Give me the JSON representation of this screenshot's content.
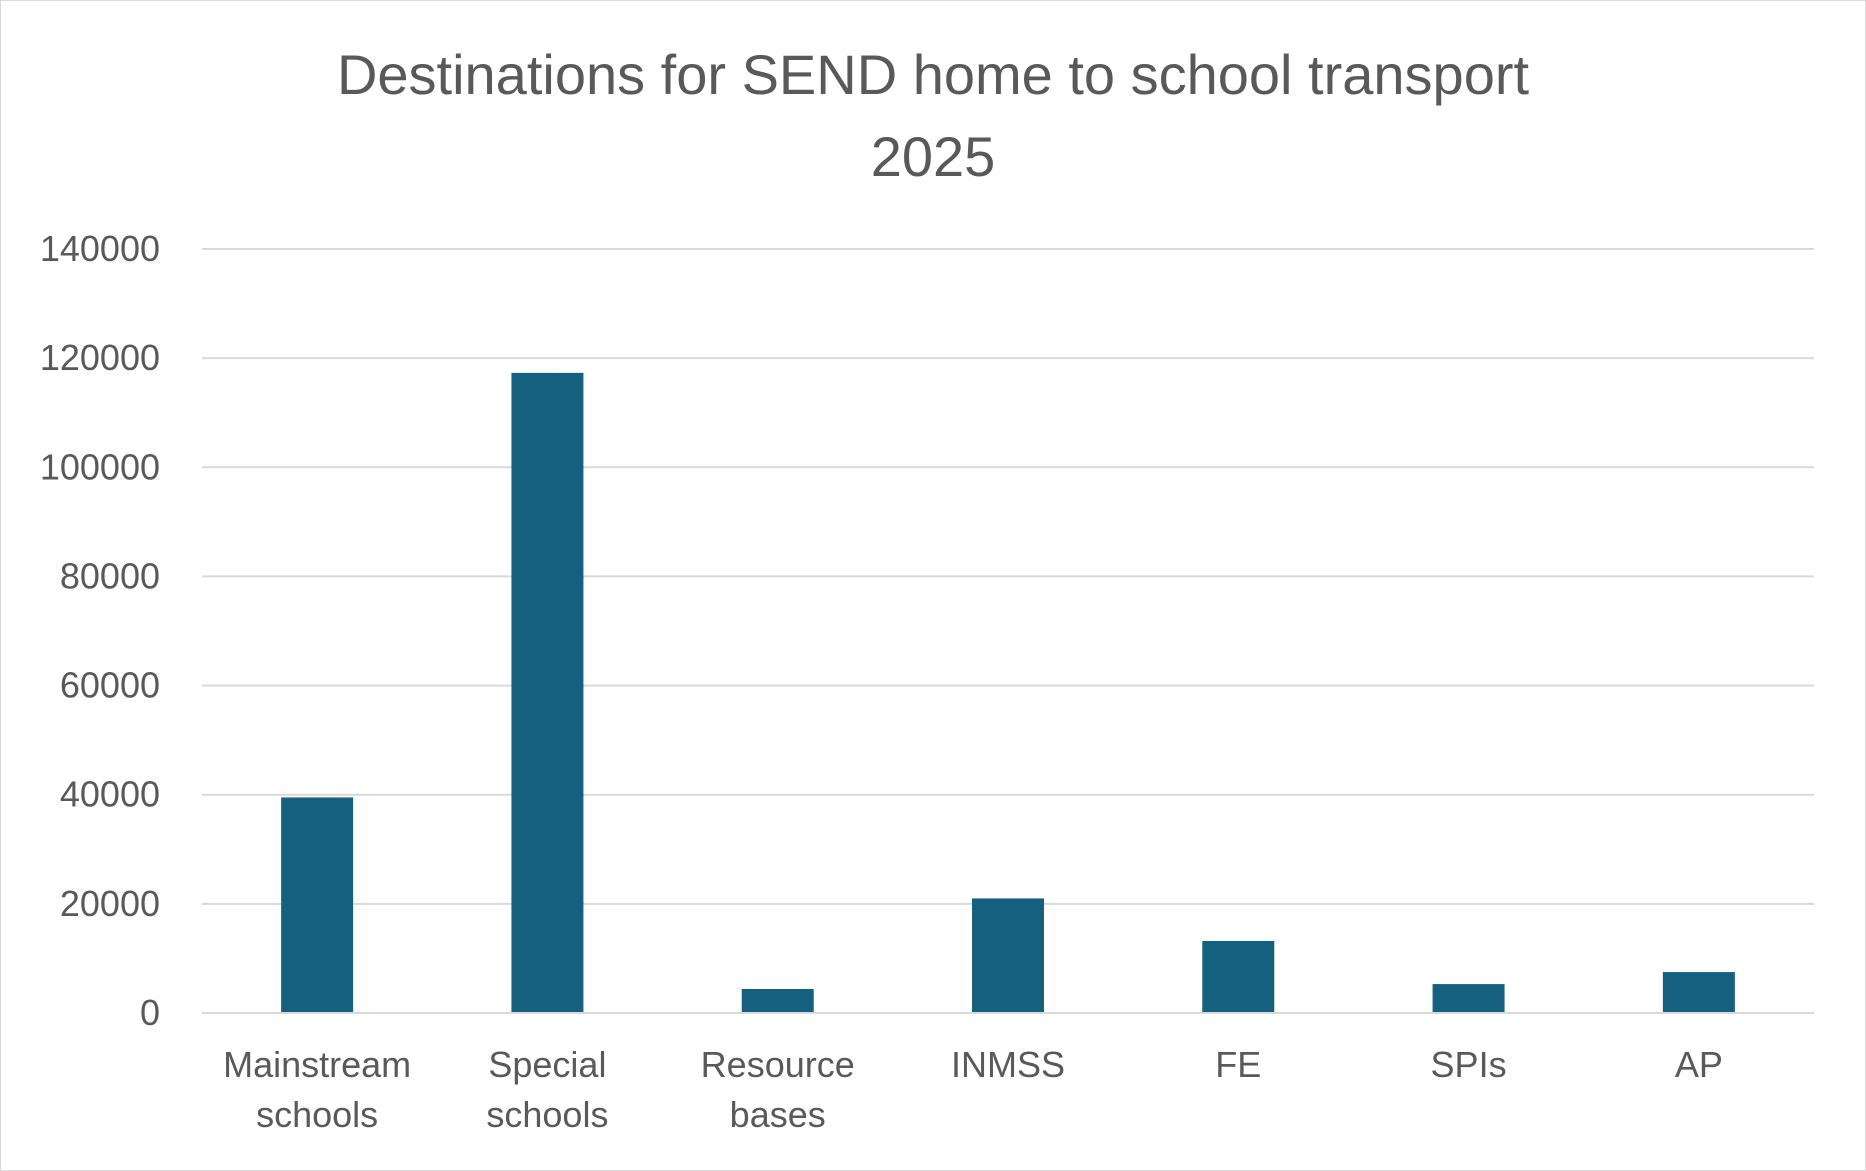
{
  "chart_data": {
    "type": "bar",
    "title_lines": [
      "Destinations for SEND home to school transport",
      "2025"
    ],
    "xlabel": "",
    "ylabel": "",
    "categories": [
      [
        "Mainstream",
        "schools"
      ],
      [
        "Special",
        "schools"
      ],
      [
        "Resource",
        "bases"
      ],
      [
        "INMSS"
      ],
      [
        "FE"
      ],
      [
        "SPIs"
      ],
      [
        "AP"
      ]
    ],
    "values": [
      39500,
      117300,
      4400,
      21000,
      13200,
      5300,
      7500
    ],
    "ylim": [
      0,
      140000
    ],
    "yticks": [
      "0",
      "20000",
      "40000",
      "60000",
      "80000",
      "100000",
      "120000",
      "140000"
    ],
    "grid": true,
    "legend": "none",
    "colors": {
      "bar": "#16607f",
      "grid": "#d9d9d9",
      "axis": "#d9d9d9",
      "text": "#595959"
    }
  }
}
